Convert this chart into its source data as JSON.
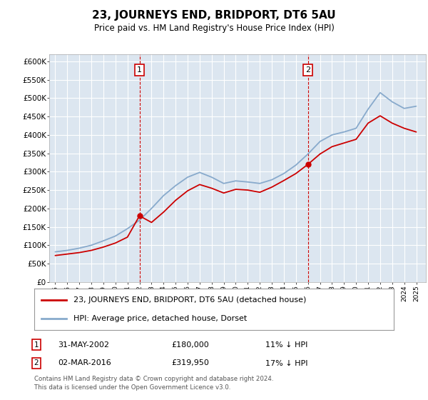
{
  "title": "23, JOURNEYS END, BRIDPORT, DT6 5AU",
  "subtitle": "Price paid vs. HM Land Registry's House Price Index (HPI)",
  "ylim": [
    0,
    620000
  ],
  "yticks": [
    0,
    50000,
    100000,
    150000,
    200000,
    250000,
    300000,
    350000,
    400000,
    450000,
    500000,
    550000,
    600000
  ],
  "background_color": "#dce6f0",
  "grid_color": "#ffffff",
  "red_color": "#cc0000",
  "blue_color": "#88aacc",
  "marker1_value": 180000,
  "marker2_value": 319950,
  "marker1_x": 2002,
  "marker2_x": 2016,
  "purchase1_date": "31-MAY-2002",
  "purchase1_price": "£180,000",
  "purchase1_hpi": "11% ↓ HPI",
  "purchase2_date": "02-MAR-2016",
  "purchase2_price": "£319,950",
  "purchase2_hpi": "17% ↓ HPI",
  "legend_line1": "23, JOURNEYS END, BRIDPORT, DT6 5AU (detached house)",
  "legend_line2": "HPI: Average price, detached house, Dorset",
  "footer": "Contains HM Land Registry data © Crown copyright and database right 2024.\nThis data is licensed under the Open Government Licence v3.0.",
  "x_years": [
    1995,
    1996,
    1997,
    1998,
    1999,
    2000,
    2001,
    2002,
    2003,
    2004,
    2005,
    2006,
    2007,
    2008,
    2009,
    2010,
    2011,
    2012,
    2013,
    2014,
    2015,
    2016,
    2017,
    2018,
    2019,
    2020,
    2021,
    2022,
    2023,
    2024,
    2025
  ],
  "hpi_values": [
    82000,
    86000,
    92000,
    100000,
    112000,
    125000,
    145000,
    168000,
    200000,
    235000,
    262000,
    285000,
    298000,
    285000,
    268000,
    275000,
    272000,
    268000,
    278000,
    295000,
    318000,
    348000,
    382000,
    400000,
    408000,
    418000,
    470000,
    515000,
    490000,
    472000,
    478000
  ],
  "red_values": [
    72000,
    76000,
    80000,
    86000,
    95000,
    106000,
    122000,
    180000,
    162000,
    190000,
    222000,
    248000,
    265000,
    255000,
    242000,
    252000,
    250000,
    244000,
    258000,
    276000,
    295000,
    319950,
    348000,
    368000,
    378000,
    388000,
    432000,
    452000,
    432000,
    418000,
    408000
  ]
}
